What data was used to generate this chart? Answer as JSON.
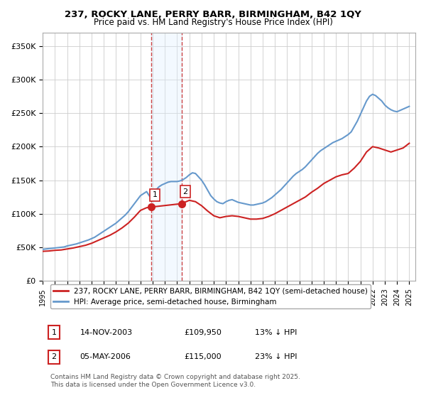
{
  "title": "237, ROCKY LANE, PERRY BARR, BIRMINGHAM, B42 1QY",
  "subtitle": "Price paid vs. HM Land Registry's House Price Index (HPI)",
  "legend_line1": "237, ROCKY LANE, PERRY BARR, BIRMINGHAM, B42 1QY (semi-detached house)",
  "legend_line2": "HPI: Average price, semi-detached house, Birmingham",
  "footer": "Contains HM Land Registry data © Crown copyright and database right 2025.\nThis data is licensed under the Open Government Licence v3.0.",
  "sale1_date": "14-NOV-2003",
  "sale1_price": "£109,950",
  "sale1_hpi": "13% ↓ HPI",
  "sale2_date": "05-MAY-2006",
  "sale2_price": "£115,000",
  "sale2_hpi": "23% ↓ HPI",
  "hpi_color": "#6699cc",
  "price_color": "#cc2222",
  "marker1_color": "#cc2222",
  "marker2_color": "#cc2222",
  "vline1_color": "#cc4444",
  "vline2_color": "#cc4444",
  "vshade1_color": "#ddeeff",
  "background_color": "#ffffff",
  "grid_color": "#cccccc",
  "ylim": [
    0,
    370000
  ],
  "yticks": [
    0,
    50000,
    100000,
    150000,
    200000,
    250000,
    300000,
    350000
  ],
  "xlim_start": 1995.0,
  "xlim_end": 2025.5,
  "sale1_x": 2003.87,
  "sale1_y": 109950,
  "sale2_x": 2006.35,
  "sale2_y": 115000,
  "hpi_years": [
    1995.0,
    1995.25,
    1995.5,
    1995.75,
    1996.0,
    1996.25,
    1996.5,
    1996.75,
    1997.0,
    1997.25,
    1997.5,
    1997.75,
    1998.0,
    1998.25,
    1998.5,
    1998.75,
    1999.0,
    1999.25,
    1999.5,
    1999.75,
    2000.0,
    2000.25,
    2000.5,
    2000.75,
    2001.0,
    2001.25,
    2001.5,
    2001.75,
    2002.0,
    2002.25,
    2002.5,
    2002.75,
    2003.0,
    2003.25,
    2003.5,
    2003.75,
    2004.0,
    2004.25,
    2004.5,
    2004.75,
    2005.0,
    2005.25,
    2005.5,
    2005.75,
    2006.0,
    2006.25,
    2006.5,
    2006.75,
    2007.0,
    2007.25,
    2007.5,
    2007.75,
    2008.0,
    2008.25,
    2008.5,
    2008.75,
    2009.0,
    2009.25,
    2009.5,
    2009.75,
    2010.0,
    2010.25,
    2010.5,
    2010.75,
    2011.0,
    2011.25,
    2011.5,
    2011.75,
    2012.0,
    2012.25,
    2012.5,
    2012.75,
    2013.0,
    2013.25,
    2013.5,
    2013.75,
    2014.0,
    2014.25,
    2014.5,
    2014.75,
    2015.0,
    2015.25,
    2015.5,
    2015.75,
    2016.0,
    2016.25,
    2016.5,
    2016.75,
    2017.0,
    2017.25,
    2017.5,
    2017.75,
    2018.0,
    2018.25,
    2018.5,
    2018.75,
    2019.0,
    2019.25,
    2019.5,
    2019.75,
    2020.0,
    2020.25,
    2020.5,
    2020.75,
    2021.0,
    2021.25,
    2021.5,
    2021.75,
    2022.0,
    2022.25,
    2022.5,
    2022.75,
    2023.0,
    2023.25,
    2023.5,
    2023.75,
    2024.0,
    2024.25,
    2024.5,
    2024.75,
    2025.0
  ],
  "hpi_values": [
    47000,
    47500,
    48000,
    48500,
    49000,
    49500,
    50000,
    50500,
    52000,
    53000,
    54000,
    55000,
    56500,
    58000,
    59500,
    61000,
    63000,
    65000,
    68000,
    71000,
    74000,
    77000,
    80000,
    83000,
    86000,
    90000,
    94000,
    98000,
    103000,
    109000,
    115000,
    121000,
    127000,
    130000,
    133000,
    126000,
    130000,
    135000,
    140000,
    143000,
    145000,
    147000,
    148000,
    148000,
    148000,
    149000,
    151000,
    154000,
    158000,
    161000,
    160000,
    155000,
    150000,
    143000,
    135000,
    127000,
    122000,
    118000,
    116000,
    115000,
    118000,
    120000,
    121000,
    119000,
    117000,
    116000,
    115000,
    114000,
    113000,
    113000,
    114000,
    115000,
    116000,
    118000,
    121000,
    124000,
    128000,
    132000,
    136000,
    141000,
    146000,
    151000,
    156000,
    160000,
    163000,
    166000,
    170000,
    175000,
    180000,
    185000,
    190000,
    194000,
    197000,
    200000,
    203000,
    206000,
    208000,
    210000,
    212000,
    215000,
    218000,
    222000,
    230000,
    238000,
    248000,
    258000,
    268000,
    275000,
    278000,
    276000,
    272000,
    268000,
    262000,
    258000,
    255000,
    253000,
    252000,
    254000,
    256000,
    258000,
    260000
  ],
  "price_years": [
    1995.0,
    1995.5,
    1996.0,
    1996.5,
    1997.0,
    1997.5,
    1998.0,
    1998.5,
    1999.0,
    1999.5,
    2000.0,
    2000.5,
    2001.0,
    2001.5,
    2002.0,
    2002.5,
    2003.0,
    2003.5,
    2003.87,
    2006.35,
    2007.0,
    2007.5,
    2008.0,
    2008.5,
    2009.0,
    2009.5,
    2010.0,
    2010.5,
    2011.0,
    2011.5,
    2012.0,
    2012.5,
    2013.0,
    2013.5,
    2014.0,
    2014.5,
    2015.0,
    2015.5,
    2016.0,
    2016.5,
    2017.0,
    2017.5,
    2018.0,
    2018.5,
    2019.0,
    2019.5,
    2020.0,
    2020.5,
    2021.0,
    2021.5,
    2022.0,
    2022.5,
    2023.0,
    2023.5,
    2024.0,
    2024.5,
    2025.0
  ],
  "price_values": [
    44000,
    44500,
    45500,
    46000,
    47500,
    49000,
    51000,
    53000,
    56000,
    60000,
    64000,
    68000,
    73000,
    79000,
    86000,
    95000,
    105000,
    109000,
    109950,
    115000,
    120000,
    118000,
    112000,
    104000,
    97000,
    94000,
    96000,
    97000,
    96000,
    94000,
    92000,
    92000,
    93000,
    96000,
    100000,
    105000,
    110000,
    115000,
    120000,
    125000,
    132000,
    138000,
    145000,
    150000,
    155000,
    158000,
    160000,
    168000,
    178000,
    192000,
    200000,
    198000,
    195000,
    192000,
    195000,
    198000,
    205000
  ]
}
